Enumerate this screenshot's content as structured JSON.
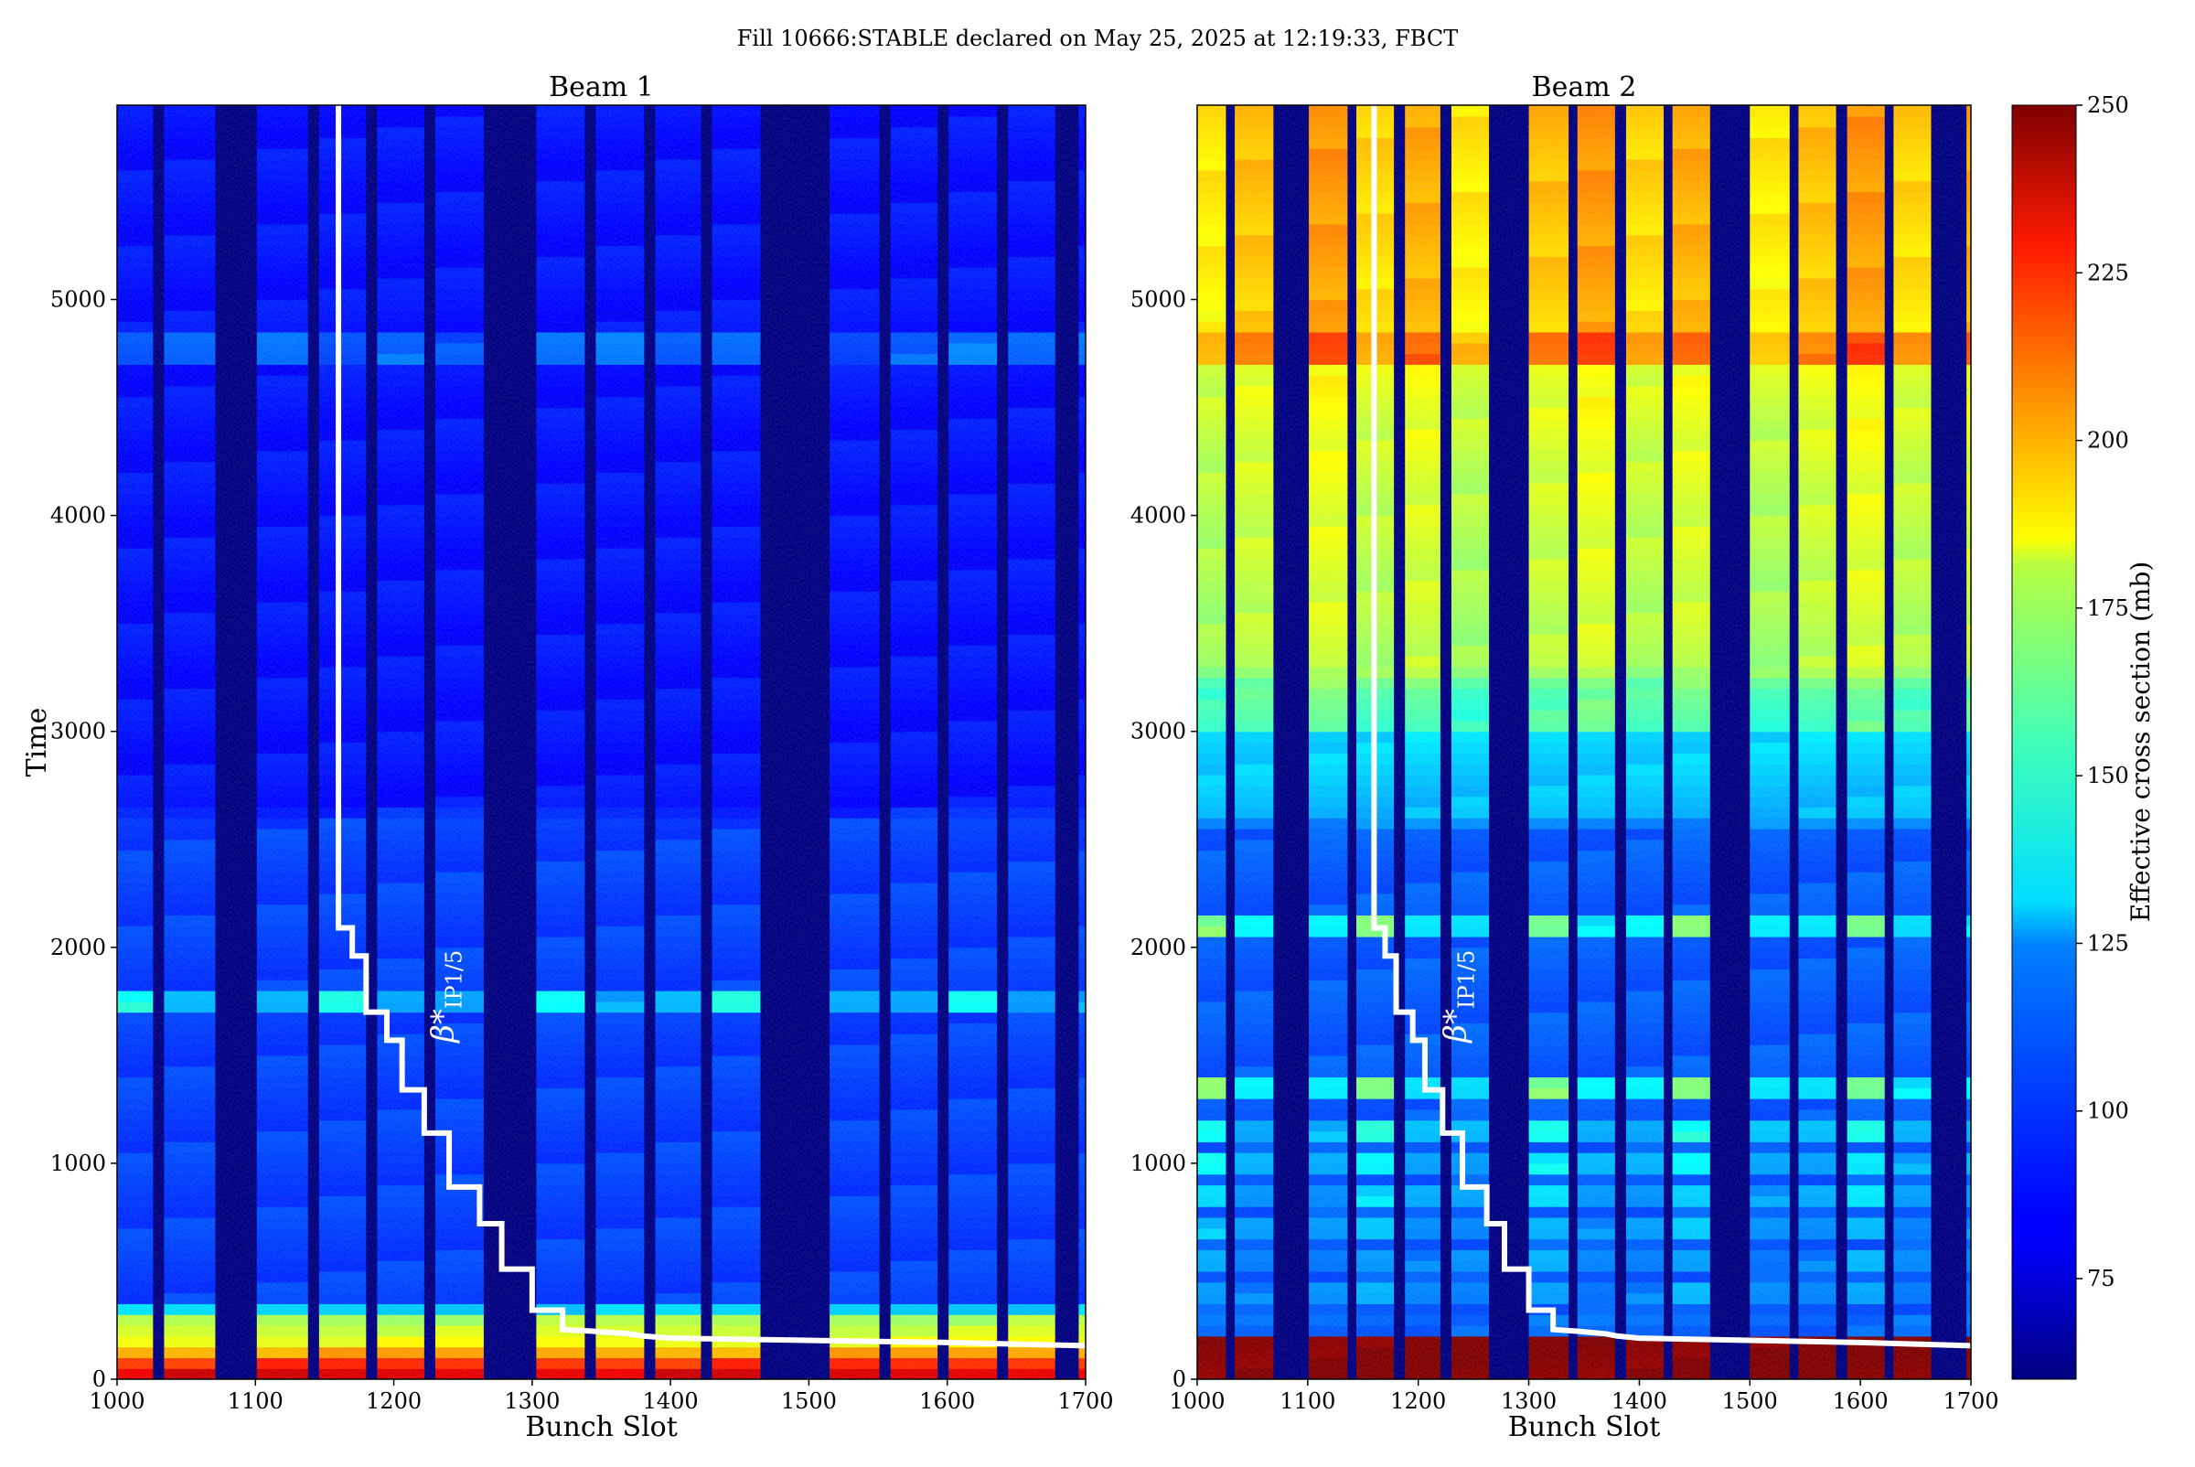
{
  "suptitle": "Fill 10666:STABLE declared on May 25, 2025 at 12:19:33, FBCT",
  "chart_data": [
    {
      "type": "heatmap",
      "title": "Beam 1",
      "xlabel": "Bunch Slot",
      "ylabel": "Time",
      "xlim": [
        1000,
        1700
      ],
      "ylim": [
        0,
        5900
      ],
      "x_ticks": [
        1000,
        1100,
        1200,
        1300,
        1400,
        1500,
        1600,
        1700
      ],
      "y_ticks": [
        0,
        1000,
        2000,
        3000,
        4000,
        5000
      ],
      "filled_slot_ranges": [
        [
          1000,
          1026
        ],
        [
          1034,
          1071
        ],
        [
          1101,
          1138
        ],
        [
          1146,
          1180
        ],
        [
          1188,
          1222
        ],
        [
          1230,
          1265
        ],
        [
          1303,
          1338
        ],
        [
          1346,
          1381
        ],
        [
          1389,
          1422
        ],
        [
          1430,
          1465
        ],
        [
          1515,
          1551
        ],
        [
          1559,
          1593
        ],
        [
          1601,
          1636
        ],
        [
          1644,
          1678
        ],
        [
          1695,
          1700
        ]
      ],
      "colorbar_range": [
        60,
        250
      ],
      "zmap": {
        "base": [
          [
            0,
            240
          ],
          [
            100,
            210
          ],
          [
            150,
            180
          ],
          [
            300,
            160
          ],
          [
            330,
            115
          ],
          [
            350,
            95
          ],
          [
            2600,
            95
          ],
          [
            2650,
            86
          ],
          [
            5900,
            86
          ]
        ],
        "bunch_bands": [
          [
            4720,
            4830,
            20
          ]
        ],
        "dot_rows": [
          [
            1740,
            40
          ]
        ]
      },
      "annotation_text": "β*",
      "annotation_sub": "IP1/5",
      "annotation_at": [
        1243,
        1560
      ],
      "beta_star_step_line": [
        [
          1160,
          5900
        ],
        [
          1160,
          2090
        ],
        [
          1170,
          2090
        ],
        [
          1170,
          1960
        ],
        [
          1180,
          1960
        ],
        [
          1180,
          1700
        ],
        [
          1195,
          1700
        ],
        [
          1195,
          1570
        ],
        [
          1206,
          1570
        ],
        [
          1206,
          1340
        ],
        [
          1222,
          1340
        ],
        [
          1222,
          1140
        ],
        [
          1240,
          1140
        ],
        [
          1240,
          890
        ],
        [
          1262,
          890
        ],
        [
          1262,
          720
        ],
        [
          1278,
          720
        ],
        [
          1278,
          510
        ],
        [
          1300,
          510
        ],
        [
          1300,
          320
        ],
        [
          1322,
          320
        ],
        [
          1322,
          230
        ],
        [
          1345,
          222
        ],
        [
          1370,
          210
        ],
        [
          1380,
          200
        ],
        [
          1400,
          190
        ],
        [
          1500,
          180
        ],
        [
          1600,
          170
        ],
        [
          1700,
          155
        ]
      ]
    },
    {
      "type": "heatmap",
      "title": "Beam 2",
      "xlabel": "Bunch Slot",
      "ylabel": "",
      "xlim": [
        1000,
        1700
      ],
      "ylim": [
        0,
        5900
      ],
      "x_ticks": [
        1000,
        1100,
        1200,
        1300,
        1400,
        1500,
        1600,
        1700
      ],
      "y_ticks": [
        0,
        1000,
        2000,
        3000,
        4000,
        5000
      ],
      "filled_slot_ranges": [
        [
          1000,
          1026
        ],
        [
          1034,
          1069
        ],
        [
          1101,
          1136
        ],
        [
          1144,
          1178
        ],
        [
          1188,
          1220
        ],
        [
          1230,
          1264
        ],
        [
          1300,
          1336
        ],
        [
          1344,
          1378
        ],
        [
          1388,
          1422
        ],
        [
          1430,
          1464
        ],
        [
          1500,
          1536
        ],
        [
          1544,
          1578
        ],
        [
          1588,
          1622
        ],
        [
          1630,
          1664
        ],
        [
          1696,
          1700
        ]
      ],
      "colorbar_range": [
        60,
        250
      ],
      "zmap": {
        "base": [
          [
            0,
            250
          ],
          [
            180,
            250
          ],
          [
            200,
            95
          ],
          [
            250,
            108
          ],
          [
            300,
            100
          ],
          [
            2550,
            100
          ],
          [
            2600,
            118
          ],
          [
            3200,
            128
          ],
          [
            3300,
            145
          ],
          [
            4200,
            150
          ],
          [
            4700,
            155
          ],
          [
            5900,
            160
          ]
        ],
        "bunch_bands": [
          [
            4720,
            4830,
            60
          ],
          [
            4840,
            5900,
            40
          ],
          [
            3000,
            4700,
            25
          ]
        ],
        "dot_rows": [
          [
            2100,
            55
          ],
          [
            1360,
            55
          ],
          [
            1170,
            35
          ],
          [
            1010,
            30
          ],
          [
            850,
            25
          ],
          [
            700,
            20
          ],
          [
            560,
            15
          ],
          [
            420,
            15
          ]
        ]
      },
      "annotation_text": "β*",
      "annotation_sub": "IP1/5",
      "annotation_at": [
        1243,
        1560
      ],
      "beta_star_step_line": [
        [
          1160,
          5900
        ],
        [
          1160,
          2090
        ],
        [
          1170,
          2090
        ],
        [
          1170,
          1960
        ],
        [
          1180,
          1960
        ],
        [
          1180,
          1700
        ],
        [
          1195,
          1700
        ],
        [
          1195,
          1570
        ],
        [
          1206,
          1570
        ],
        [
          1206,
          1340
        ],
        [
          1222,
          1340
        ],
        [
          1222,
          1140
        ],
        [
          1240,
          1140
        ],
        [
          1240,
          890
        ],
        [
          1262,
          890
        ],
        [
          1262,
          720
        ],
        [
          1278,
          720
        ],
        [
          1278,
          510
        ],
        [
          1300,
          510
        ],
        [
          1300,
          320
        ],
        [
          1322,
          320
        ],
        [
          1322,
          230
        ],
        [
          1345,
          222
        ],
        [
          1370,
          210
        ],
        [
          1380,
          200
        ],
        [
          1400,
          190
        ],
        [
          1500,
          180
        ],
        [
          1600,
          170
        ],
        [
          1700,
          155
        ]
      ]
    }
  ],
  "colorbar": {
    "label": "Effective cross section (mb)",
    "range": [
      60,
      250
    ],
    "ticks": [
      75,
      100,
      125,
      150,
      175,
      200,
      225,
      250
    ],
    "colormap": "jet"
  }
}
